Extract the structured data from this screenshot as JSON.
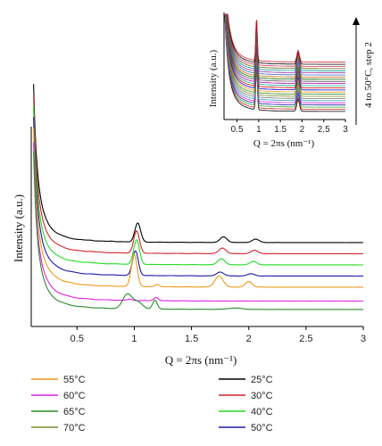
{
  "chart_data": [
    {
      "type": "line",
      "xlabel": "Q = 2πs (nm⁻¹)",
      "ylabel": "Intensity (a.u.)",
      "xlim": [
        0.1,
        3.0
      ],
      "xticks": [
        "0.5",
        "1",
        "1.5",
        "2",
        "2.5",
        "3"
      ],
      "y_ticks_shown": false,
      "grid": false,
      "legend_position": "bottom",
      "series": [
        {
          "name": "25°C",
          "color": "#000000",
          "offset": 6,
          "peaks": [
            {
              "x": 1.03,
              "h": 1.7,
              "w": 0.025
            },
            {
              "x": 1.78,
              "h": 0.5,
              "w": 0.03
            },
            {
              "x": 2.06,
              "h": 0.3,
              "w": 0.03
            },
            {
              "x": 0.62,
              "h": 0.05,
              "w": 0.02
            },
            {
              "x": 0.8,
              "h": 0.05,
              "w": 0.02
            }
          ]
        },
        {
          "name": "30°C",
          "color": "#d0242b",
          "offset": 5,
          "peaks": [
            {
              "x": 1.02,
              "h": 2.0,
              "w": 0.025
            },
            {
              "x": 1.77,
              "h": 0.5,
              "w": 0.03
            },
            {
              "x": 2.05,
              "h": 0.3,
              "w": 0.03
            },
            {
              "x": 0.62,
              "h": 0.05,
              "w": 0.02
            }
          ]
        },
        {
          "name": "40°C",
          "color": "#22dd22",
          "offset": 4,
          "peaks": [
            {
              "x": 1.02,
              "h": 2.2,
              "w": 0.025
            },
            {
              "x": 1.76,
              "h": 0.55,
              "w": 0.03
            },
            {
              "x": 2.04,
              "h": 0.3,
              "w": 0.03
            },
            {
              "x": 0.6,
              "h": 0.06,
              "w": 0.02
            }
          ]
        },
        {
          "name": "50°C",
          "color": "#1a1aa8",
          "offset": 3,
          "peaks": [
            {
              "x": 1.01,
              "h": 2.2,
              "w": 0.025
            },
            {
              "x": 1.75,
              "h": 0.35,
              "w": 0.03
            },
            {
              "x": 2.02,
              "h": 0.2,
              "w": 0.03
            }
          ]
        },
        {
          "name": "55°C",
          "color": "#ee9a1a",
          "offset": 2,
          "peaks": [
            {
              "x": 1.0,
              "h": 2.9,
              "w": 0.025
            },
            {
              "x": 1.74,
              "h": 1.0,
              "w": 0.035
            },
            {
              "x": 2.0,
              "h": 0.5,
              "w": 0.03
            },
            {
              "x": 1.2,
              "h": 0.2,
              "w": 0.02
            }
          ]
        },
        {
          "name": "60°C",
          "color": "#e020e0",
          "offset": 0.75,
          "peaks": [
            {
              "x": 1.19,
              "h": 0.3,
              "w": 0.02
            },
            {
              "x": 0.96,
              "h": 0.12,
              "w": 0.02
            }
          ]
        },
        {
          "name": "65°C",
          "color": "#2a8a2a",
          "offset": 0,
          "peaks": [
            {
              "x": 0.94,
              "h": 1.3,
              "w": 0.04
            },
            {
              "x": 1.03,
              "h": 0.6,
              "w": 0.04
            },
            {
              "x": 1.18,
              "h": 0.8,
              "w": 0.02
            },
            {
              "x": 1.88,
              "h": 0.12,
              "w": 0.06
            }
          ]
        },
        {
          "name": "70°C",
          "color": "#7f8a2a",
          "offset": null,
          "peaks": []
        }
      ]
    },
    {
      "type": "line",
      "xlabel": "Q = 2πs (nm⁻¹)",
      "ylabel": "Intensity (a.u.)",
      "xlim": [
        0.2,
        3.0
      ],
      "xticks": [
        "0.5",
        "1",
        "1.5",
        "2",
        "2.5",
        "3"
      ],
      "y_ticks_shown": false,
      "annotation": "4 to 50°C, step 2",
      "series_colors": [
        "#000000",
        "#d0242b",
        "#22aa22",
        "#1a1aa8",
        "#e020e0",
        "#20a0c0",
        "#777777",
        "#7f8a2a",
        "#2a8a2a",
        "#ee9a1a",
        "#0000cc",
        "#cc0000",
        "#00aa88",
        "#aa00aa",
        "#555555",
        "#006600",
        "#cc6600",
        "#3366cc",
        "#993399",
        "#009999",
        "#666600",
        "#cc3366",
        "#000000",
        "#d0242b"
      ],
      "peak_positions": [
        0.95,
        1.91
      ]
    }
  ]
}
